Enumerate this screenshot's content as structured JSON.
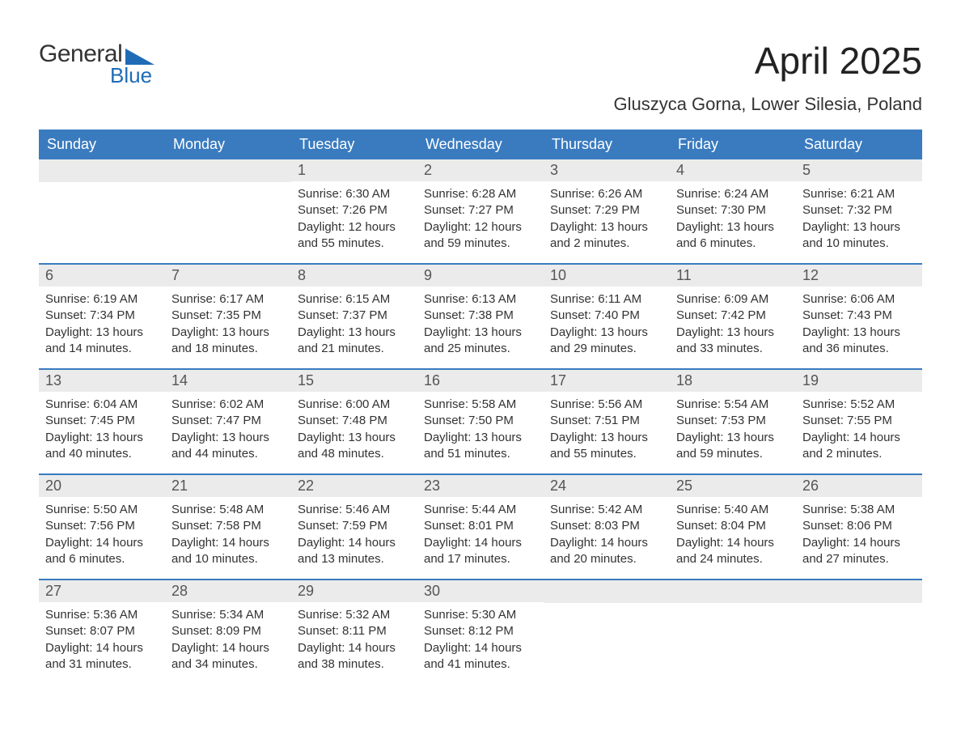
{
  "logo": {
    "text1": "General",
    "text2": "Blue"
  },
  "title": "April 2025",
  "subtitle": "Gluszyca Gorna, Lower Silesia, Poland",
  "colors": {
    "header_bg": "#3a7bbf",
    "header_text": "#ffffff",
    "week_border": "#3a7bbf",
    "daynum_bg": "#ebebeb",
    "daynum_text": "#555555",
    "body_text": "#333333",
    "logo_accent": "#1f6bb6",
    "background": "#ffffff"
  },
  "fonts": {
    "title_pt": 46,
    "subtitle_pt": 22,
    "header_pt": 18,
    "daynum_pt": 18,
    "body_pt": 15
  },
  "week_days": [
    "Sunday",
    "Monday",
    "Tuesday",
    "Wednesday",
    "Thursday",
    "Friday",
    "Saturday"
  ],
  "weeks": [
    [
      {
        "num": "",
        "sunrise": "",
        "sunset": "",
        "daylight1": "",
        "daylight2": ""
      },
      {
        "num": "",
        "sunrise": "",
        "sunset": "",
        "daylight1": "",
        "daylight2": ""
      },
      {
        "num": "1",
        "sunrise": "Sunrise: 6:30 AM",
        "sunset": "Sunset: 7:26 PM",
        "daylight1": "Daylight: 12 hours",
        "daylight2": "and 55 minutes."
      },
      {
        "num": "2",
        "sunrise": "Sunrise: 6:28 AM",
        "sunset": "Sunset: 7:27 PM",
        "daylight1": "Daylight: 12 hours",
        "daylight2": "and 59 minutes."
      },
      {
        "num": "3",
        "sunrise": "Sunrise: 6:26 AM",
        "sunset": "Sunset: 7:29 PM",
        "daylight1": "Daylight: 13 hours",
        "daylight2": "and 2 minutes."
      },
      {
        "num": "4",
        "sunrise": "Sunrise: 6:24 AM",
        "sunset": "Sunset: 7:30 PM",
        "daylight1": "Daylight: 13 hours",
        "daylight2": "and 6 minutes."
      },
      {
        "num": "5",
        "sunrise": "Sunrise: 6:21 AM",
        "sunset": "Sunset: 7:32 PM",
        "daylight1": "Daylight: 13 hours",
        "daylight2": "and 10 minutes."
      }
    ],
    [
      {
        "num": "6",
        "sunrise": "Sunrise: 6:19 AM",
        "sunset": "Sunset: 7:34 PM",
        "daylight1": "Daylight: 13 hours",
        "daylight2": "and 14 minutes."
      },
      {
        "num": "7",
        "sunrise": "Sunrise: 6:17 AM",
        "sunset": "Sunset: 7:35 PM",
        "daylight1": "Daylight: 13 hours",
        "daylight2": "and 18 minutes."
      },
      {
        "num": "8",
        "sunrise": "Sunrise: 6:15 AM",
        "sunset": "Sunset: 7:37 PM",
        "daylight1": "Daylight: 13 hours",
        "daylight2": "and 21 minutes."
      },
      {
        "num": "9",
        "sunrise": "Sunrise: 6:13 AM",
        "sunset": "Sunset: 7:38 PM",
        "daylight1": "Daylight: 13 hours",
        "daylight2": "and 25 minutes."
      },
      {
        "num": "10",
        "sunrise": "Sunrise: 6:11 AM",
        "sunset": "Sunset: 7:40 PM",
        "daylight1": "Daylight: 13 hours",
        "daylight2": "and 29 minutes."
      },
      {
        "num": "11",
        "sunrise": "Sunrise: 6:09 AM",
        "sunset": "Sunset: 7:42 PM",
        "daylight1": "Daylight: 13 hours",
        "daylight2": "and 33 minutes."
      },
      {
        "num": "12",
        "sunrise": "Sunrise: 6:06 AM",
        "sunset": "Sunset: 7:43 PM",
        "daylight1": "Daylight: 13 hours",
        "daylight2": "and 36 minutes."
      }
    ],
    [
      {
        "num": "13",
        "sunrise": "Sunrise: 6:04 AM",
        "sunset": "Sunset: 7:45 PM",
        "daylight1": "Daylight: 13 hours",
        "daylight2": "and 40 minutes."
      },
      {
        "num": "14",
        "sunrise": "Sunrise: 6:02 AM",
        "sunset": "Sunset: 7:47 PM",
        "daylight1": "Daylight: 13 hours",
        "daylight2": "and 44 minutes."
      },
      {
        "num": "15",
        "sunrise": "Sunrise: 6:00 AM",
        "sunset": "Sunset: 7:48 PM",
        "daylight1": "Daylight: 13 hours",
        "daylight2": "and 48 minutes."
      },
      {
        "num": "16",
        "sunrise": "Sunrise: 5:58 AM",
        "sunset": "Sunset: 7:50 PM",
        "daylight1": "Daylight: 13 hours",
        "daylight2": "and 51 minutes."
      },
      {
        "num": "17",
        "sunrise": "Sunrise: 5:56 AM",
        "sunset": "Sunset: 7:51 PM",
        "daylight1": "Daylight: 13 hours",
        "daylight2": "and 55 minutes."
      },
      {
        "num": "18",
        "sunrise": "Sunrise: 5:54 AM",
        "sunset": "Sunset: 7:53 PM",
        "daylight1": "Daylight: 13 hours",
        "daylight2": "and 59 minutes."
      },
      {
        "num": "19",
        "sunrise": "Sunrise: 5:52 AM",
        "sunset": "Sunset: 7:55 PM",
        "daylight1": "Daylight: 14 hours",
        "daylight2": "and 2 minutes."
      }
    ],
    [
      {
        "num": "20",
        "sunrise": "Sunrise: 5:50 AM",
        "sunset": "Sunset: 7:56 PM",
        "daylight1": "Daylight: 14 hours",
        "daylight2": "and 6 minutes."
      },
      {
        "num": "21",
        "sunrise": "Sunrise: 5:48 AM",
        "sunset": "Sunset: 7:58 PM",
        "daylight1": "Daylight: 14 hours",
        "daylight2": "and 10 minutes."
      },
      {
        "num": "22",
        "sunrise": "Sunrise: 5:46 AM",
        "sunset": "Sunset: 7:59 PM",
        "daylight1": "Daylight: 14 hours",
        "daylight2": "and 13 minutes."
      },
      {
        "num": "23",
        "sunrise": "Sunrise: 5:44 AM",
        "sunset": "Sunset: 8:01 PM",
        "daylight1": "Daylight: 14 hours",
        "daylight2": "and 17 minutes."
      },
      {
        "num": "24",
        "sunrise": "Sunrise: 5:42 AM",
        "sunset": "Sunset: 8:03 PM",
        "daylight1": "Daylight: 14 hours",
        "daylight2": "and 20 minutes."
      },
      {
        "num": "25",
        "sunrise": "Sunrise: 5:40 AM",
        "sunset": "Sunset: 8:04 PM",
        "daylight1": "Daylight: 14 hours",
        "daylight2": "and 24 minutes."
      },
      {
        "num": "26",
        "sunrise": "Sunrise: 5:38 AM",
        "sunset": "Sunset: 8:06 PM",
        "daylight1": "Daylight: 14 hours",
        "daylight2": "and 27 minutes."
      }
    ],
    [
      {
        "num": "27",
        "sunrise": "Sunrise: 5:36 AM",
        "sunset": "Sunset: 8:07 PM",
        "daylight1": "Daylight: 14 hours",
        "daylight2": "and 31 minutes."
      },
      {
        "num": "28",
        "sunrise": "Sunrise: 5:34 AM",
        "sunset": "Sunset: 8:09 PM",
        "daylight1": "Daylight: 14 hours",
        "daylight2": "and 34 minutes."
      },
      {
        "num": "29",
        "sunrise": "Sunrise: 5:32 AM",
        "sunset": "Sunset: 8:11 PM",
        "daylight1": "Daylight: 14 hours",
        "daylight2": "and 38 minutes."
      },
      {
        "num": "30",
        "sunrise": "Sunrise: 5:30 AM",
        "sunset": "Sunset: 8:12 PM",
        "daylight1": "Daylight: 14 hours",
        "daylight2": "and 41 minutes."
      },
      {
        "num": "",
        "sunrise": "",
        "sunset": "",
        "daylight1": "",
        "daylight2": ""
      },
      {
        "num": "",
        "sunrise": "",
        "sunset": "",
        "daylight1": "",
        "daylight2": ""
      },
      {
        "num": "",
        "sunrise": "",
        "sunset": "",
        "daylight1": "",
        "daylight2": ""
      }
    ]
  ]
}
